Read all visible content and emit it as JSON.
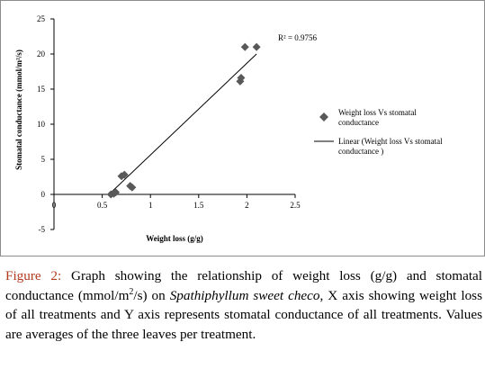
{
  "chart_data": {
    "type": "scatter",
    "title": "",
    "xlabel": "Weight loss (g/g)",
    "ylabel": "Stomatal conductance  (mmol/m²/s)",
    "xlim": [
      0,
      2.5
    ],
    "ylim": [
      -5,
      25
    ],
    "x_ticks": [
      "0",
      "0.5",
      "1",
      "1.5",
      "2",
      "2.5"
    ],
    "y_ticks": [
      "25",
      "20",
      "15",
      "10",
      "5",
      "0",
      "-5"
    ],
    "grid": false,
    "legend_position": "right",
    "series": [
      {
        "name": "Weight loss Vs stomatal conductance",
        "marker": "diamond",
        "color": "#595959",
        "points": [
          {
            "x": 0.59,
            "y": 0.0
          },
          {
            "x": 0.62,
            "y": 0.1
          },
          {
            "x": 0.64,
            "y": 0.3
          },
          {
            "x": 0.7,
            "y": 2.6
          },
          {
            "x": 0.73,
            "y": 2.8
          },
          {
            "x": 0.79,
            "y": 1.2
          },
          {
            "x": 0.81,
            "y": 1.0
          },
          {
            "x": 1.93,
            "y": 16.1
          },
          {
            "x": 1.94,
            "y": 16.6
          },
          {
            "x": 1.98,
            "y": 21.0
          },
          {
            "x": 2.1,
            "y": 21.0
          }
        ]
      },
      {
        "name": "Linear (Weight loss Vs stomatal conductance )",
        "type": "line",
        "color": "#000000",
        "points": [
          {
            "x": 0.57,
            "y": 0.0
          },
          {
            "x": 2.1,
            "y": 20.0
          }
        ]
      }
    ],
    "annotation": "R² = 0.9756"
  },
  "legend": {
    "entry1_line1": "Weight loss Vs stomatal",
    "entry1_line2": "conductance",
    "entry2_line1": "Linear (Weight loss Vs stomatal",
    "entry2_line2": "conductance )"
  },
  "caption": {
    "label": "Figure 2:",
    "text_part1": " Graph showing the relationship of weight loss (g/g) and stomatal conductance (mmol/m",
    "sup": "2",
    "text_part2": "/s) on ",
    "species": "Spathiphyllum sweet checo",
    "text_part3": ", X axis showing weight loss of all treatments and Y axis represents stomatal conductance of all treatments. Values are averages of the three leaves per treatment."
  }
}
